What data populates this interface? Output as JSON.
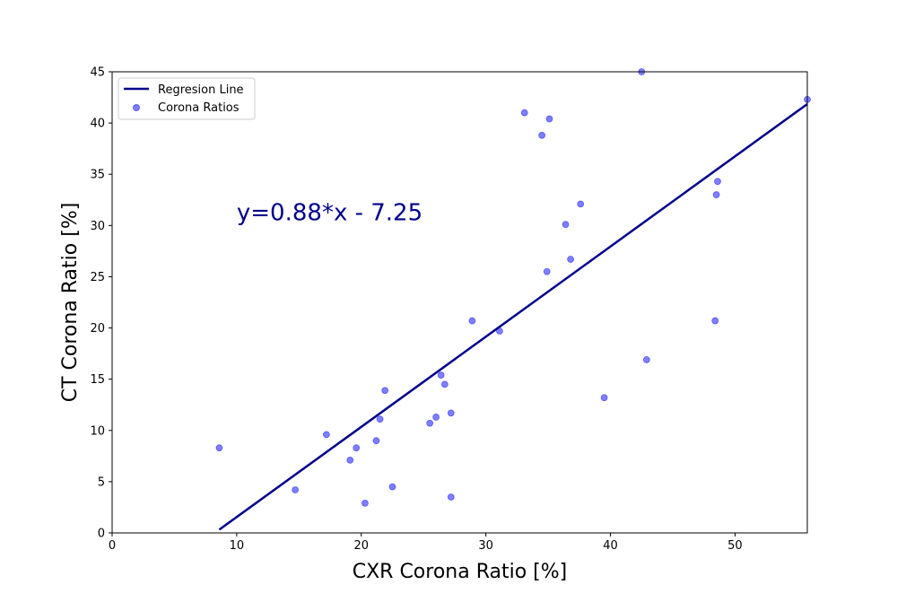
{
  "chart_data": {
    "type": "scatter",
    "title": "",
    "xlabel": "CXR Corona Ratio [%]",
    "ylabel": "CT Corona Ratio [%]",
    "xlim": [
      0,
      55.8
    ],
    "ylim": [
      0,
      45
    ],
    "xticks": [
      0,
      10,
      20,
      30,
      40,
      50
    ],
    "yticks": [
      0,
      5,
      10,
      15,
      20,
      25,
      30,
      35,
      40,
      45
    ],
    "grid": false,
    "legend_position": "upper-left",
    "annotation": {
      "text": "y=0.88*x - 7.25",
      "x": 10,
      "y": 30.5,
      "color": "#00008b"
    },
    "series": [
      {
        "name": "Regresion Line",
        "kind": "line",
        "color": "#00008b",
        "x": [
          8.6,
          55.8
        ],
        "y": [
          0.32,
          41.85
        ]
      },
      {
        "name": "Corona Ratios",
        "kind": "scatter",
        "color": "#0000ff",
        "opacity": 0.5,
        "points": [
          [
            8.6,
            8.3
          ],
          [
            14.7,
            4.2
          ],
          [
            17.2,
            9.6
          ],
          [
            19.1,
            7.1
          ],
          [
            19.6,
            8.3
          ],
          [
            20.3,
            2.9
          ],
          [
            21.2,
            9.0
          ],
          [
            21.5,
            11.1
          ],
          [
            21.9,
            13.9
          ],
          [
            22.5,
            4.5
          ],
          [
            25.5,
            10.7
          ],
          [
            26.0,
            11.3
          ],
          [
            26.4,
            15.4
          ],
          [
            26.7,
            14.5
          ],
          [
            27.2,
            11.7
          ],
          [
            27.2,
            3.5
          ],
          [
            28.9,
            20.7
          ],
          [
            31.1,
            19.7
          ],
          [
            33.1,
            41.0
          ],
          [
            34.5,
            38.8
          ],
          [
            34.9,
            25.5
          ],
          [
            35.1,
            40.4
          ],
          [
            36.4,
            30.1
          ],
          [
            36.8,
            26.7
          ],
          [
            37.6,
            32.1
          ],
          [
            39.5,
            13.2
          ],
          [
            42.5,
            45.0
          ],
          [
            42.9,
            16.9
          ],
          [
            48.4,
            20.7
          ],
          [
            48.5,
            33.0
          ],
          [
            48.6,
            34.3
          ],
          [
            55.8,
            42.3
          ]
        ]
      }
    ]
  }
}
